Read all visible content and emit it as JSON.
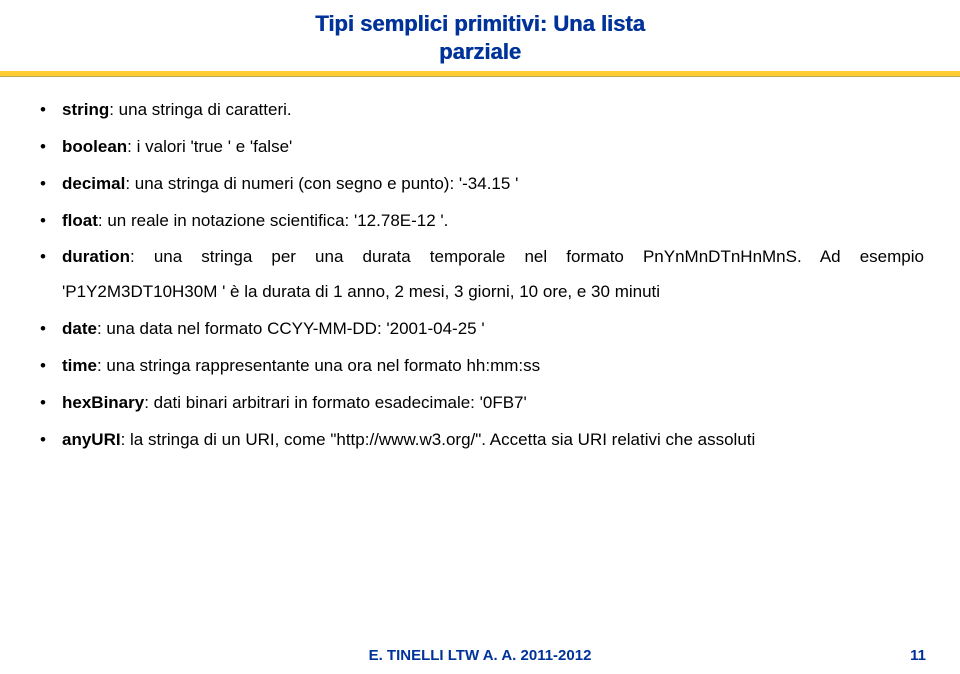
{
  "title": {
    "line1": "Tipi semplici primitivi: Una lista",
    "line2": "parziale"
  },
  "items": {
    "string": {
      "kw": "string",
      "text": ": una stringa di caratteri."
    },
    "boolean": {
      "kw": "boolean",
      "text": ": i valori 'true ' e 'false'"
    },
    "decimal": {
      "kw": "decimal",
      "text": ": una stringa di numeri (con segno e punto): '-34.15 '"
    },
    "float": {
      "kw": "float",
      "text": ": un reale in notazione scientifica: '12.78E-12 '."
    },
    "duration": {
      "kw": "duration",
      "text1": ": una stringa per una durata temporale nel formato PnYnMnDTnHnMnS. Ad esempio 'P1Y2M3DT10H30M ' è la durata di 1 anno, 2 mesi, 3 giorni, 10 ore, e 30 minuti"
    },
    "date": {
      "kw": "date",
      "text": ": una data nel formato CCYY-MM-DD: '2001-04-25 '"
    },
    "time": {
      "kw": "time",
      "text": ": una stringa rappresentante una ora nel formato hh:mm:ss"
    },
    "hexBinary": {
      "kw": "hexBinary",
      "text": ": dati binari arbitrari in formato esadecimale: '0FB7'"
    },
    "anyURI": {
      "kw": "anyURI",
      "text": ": la stringa di un URI, come \"http://www.w3.org/\". Accetta sia URI relativi che assoluti"
    }
  },
  "footer": "E. TINELLI   LTW   A. A. 2011-2012",
  "pagenum": "11",
  "colors": {
    "title": "#003399",
    "rule": "#ffcc33",
    "footer": "#003399"
  }
}
